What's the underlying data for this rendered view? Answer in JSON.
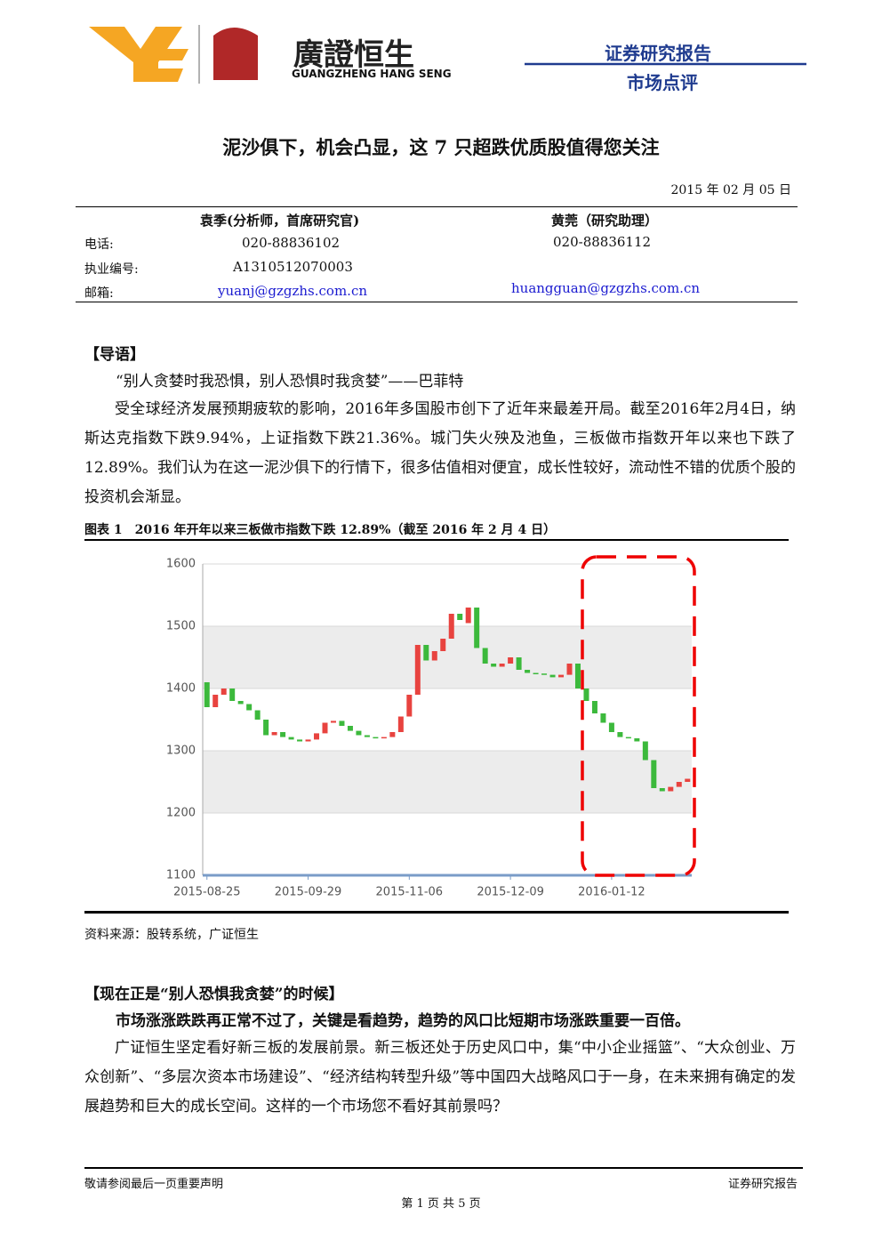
{
  "header": {
    "logo_name": "廣證恒生",
    "logo_sub": "GUANGZHENG HANG SENG",
    "report_type": "证券研究报告",
    "subtype": "市场点评"
  },
  "title": "泥沙俱下，机会凸显，这 7 只超跌优质股值得您关注",
  "date": "2015 年 02 月 05 日",
  "contacts": {
    "labels": [
      "电话:",
      "执业编号:",
      "邮箱:"
    ],
    "authors": [
      {
        "name": "袁季(分析师，首席研究官)",
        "phone": "020-88836102",
        "license": "A1310512070003",
        "email": "yuanj@gzgzhs.com.cn"
      },
      {
        "name": "黄莞（研究助理）",
        "phone": "020-88836112",
        "email": "huangguan@gzgzhs.com.cn"
      }
    ]
  },
  "intro": {
    "heading": "【导语】",
    "quote": "“别人贪婪时我恐惧，别人恐惧时我贪婪”——巴菲特",
    "paragraph": "受全球经济发展预期疲软的影响，2016年多国股市创下了近年来最差开局。截至2016年2月4日，纳斯达克指数下跌9.94%，上证指数下跌21.36%。城门失火殃及池鱼，三板做市指数开年以来也下跌了12.89%。我们认为在这一泥沙俱下的行情下，很多估值相对便宜，成长性较好，流动性不错的优质个股的投资机会渐显。"
  },
  "figure": {
    "caption": "图表 1　2016 年开年以来三板做市指数下跌 12.89%（截至 2016 年 2 月 4 日）",
    "source": "资料来源：股转系统，广证恒生"
  },
  "chart_data": {
    "type": "candlestick",
    "up_color": "#e8433f",
    "down_color": "#3cb93c",
    "grid": true,
    "categories": [
      "2015-08-25",
      null,
      null,
      null,
      null,
      null,
      null,
      null,
      null,
      null,
      null,
      null,
      "2015-09-29",
      null,
      null,
      null,
      null,
      null,
      null,
      null,
      null,
      null,
      null,
      null,
      "2015-11-06",
      null,
      null,
      null,
      null,
      null,
      null,
      null,
      null,
      null,
      null,
      null,
      "2015-12-09",
      null,
      null,
      null,
      null,
      null,
      null,
      null,
      null,
      null,
      null,
      null,
      "2016-01-12",
      null,
      null,
      null,
      null,
      null,
      null,
      null,
      null,
      null
    ],
    "open": [
      1410,
      1370,
      1390,
      1400,
      1380,
      1375,
      1365,
      1350,
      1325,
      1330,
      1322,
      1318,
      1315,
      1318,
      1328,
      1345,
      1348,
      1340,
      1332,
      1325,
      1322,
      1320,
      1322,
      1330,
      1355,
      1390,
      1470,
      1445,
      1460,
      1480,
      1520,
      1505,
      1530,
      1465,
      1440,
      1435,
      1440,
      1450,
      1430,
      1425,
      1424,
      1422,
      1418,
      1422,
      1440,
      1400,
      1380,
      1360,
      1345,
      1330,
      1322,
      1320,
      1315,
      1285,
      1240,
      1235,
      1242,
      1250
    ],
    "close": [
      1370,
      1390,
      1400,
      1380,
      1375,
      1365,
      1350,
      1325,
      1330,
      1322,
      1318,
      1315,
      1318,
      1328,
      1345,
      1348,
      1340,
      1332,
      1325,
      1322,
      1320,
      1322,
      1330,
      1355,
      1390,
      1470,
      1445,
      1460,
      1480,
      1520,
      1510,
      1530,
      1465,
      1440,
      1435,
      1440,
      1450,
      1430,
      1425,
      1424,
      1422,
      1418,
      1422,
      1440,
      1400,
      1380,
      1360,
      1345,
      1330,
      1322,
      1320,
      1315,
      1285,
      1240,
      1235,
      1242,
      1250,
      1255
    ],
    "ylim": [
      1100,
      1600
    ],
    "yticks": [
      1100,
      1200,
      1300,
      1400,
      1500,
      1600
    ]
  },
  "section2": {
    "heading": "【现在正是“别人恐惧我贪婪”的时候】",
    "lead": "市场涨涨跌跌再正常不过了，关键是看趋势，趋势的风口比短期市场涨跌重要一百倍。",
    "paragraph": "广证恒生坚定看好新三板的发展前景。新三板还处于历史风口中，集“中小企业摇篮”、“大众创业、万众创新”、“多层次资本市场建设”、“经济结构转型升级”等中国四大战略风口于一身，在未来拥有确定的发展趋势和巨大的成长空间。这样的一个市场您不看好其前景吗？"
  },
  "footer": {
    "left": "敬请参阅最后一页重要声明",
    "right": "证券研究报告",
    "page": "第 1 页 共 5 页"
  }
}
